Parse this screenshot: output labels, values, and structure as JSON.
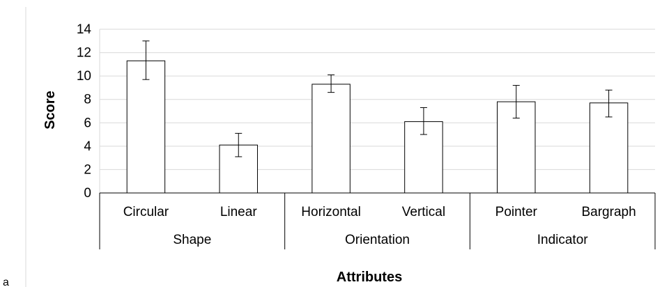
{
  "panel_label": "a",
  "chart_data": {
    "type": "bar",
    "title": "",
    "ylabel": "Score",
    "xlabel": "Attributes",
    "ylim": [
      0,
      14
    ],
    "yticks": [
      0,
      2,
      4,
      6,
      8,
      10,
      12,
      14
    ],
    "grid": true,
    "legend": "none",
    "bar_color": "#ffffff",
    "bar_edge_color": "#000000",
    "grid_color": "#d9d9d9",
    "categories": [
      "Circular",
      "Linear",
      "Horizontal",
      "Vertical",
      "Pointer",
      "Bargraph"
    ],
    "groups": [
      {
        "label": "Shape",
        "categories": [
          "Circular",
          "Linear"
        ]
      },
      {
        "label": "Orientation",
        "categories": [
          "Horizontal",
          "Vertical"
        ]
      },
      {
        "label": "Indicator",
        "categories": [
          "Pointer",
          "Bargraph"
        ]
      }
    ],
    "values": [
      11.3,
      4.1,
      9.3,
      6.1,
      7.8,
      7.7
    ],
    "error_low": [
      9.7,
      3.1,
      8.6,
      5.0,
      6.4,
      6.5
    ],
    "error_high": [
      13.0,
      5.1,
      10.1,
      7.3,
      9.2,
      8.8
    ]
  }
}
